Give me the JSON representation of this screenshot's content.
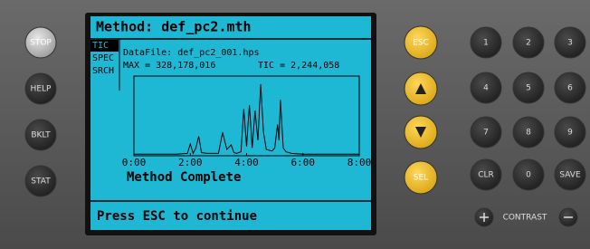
{
  "left_buttons": [
    "STOP",
    "HELP",
    "BKLT",
    "STAT"
  ],
  "screen": {
    "title": "Method: def_pc2.mth",
    "tabs": [
      "TIC",
      "SPEC",
      "SRCH"
    ],
    "data_file": "DataFile: def_pc2_001.hps",
    "max_line": "MAX = 328,178,016",
    "tic_line": "TIC = 2,244,058",
    "status": "Method Complete",
    "prompt": "Press ESC to continue"
  },
  "chart_data": {
    "type": "line",
    "color": "#000000",
    "x": [
      0,
      1.5,
      1.9,
      2.0,
      2.1,
      2.2,
      2.3,
      2.4,
      2.6,
      3.0,
      3.15,
      3.3,
      3.45,
      3.55,
      3.65,
      3.8,
      3.9,
      4.0,
      4.05,
      4.1,
      4.2,
      4.3,
      4.4,
      4.5,
      4.6,
      4.7,
      4.9,
      5.0,
      5.1,
      5.15,
      5.2,
      5.3,
      5.4,
      5.6,
      6,
      7,
      8
    ],
    "values": [
      2,
      2,
      3,
      15,
      3,
      10,
      25,
      4,
      3,
      3,
      30,
      8,
      14,
      4,
      3,
      5,
      60,
      12,
      40,
      65,
      10,
      58,
      20,
      92,
      30,
      8,
      6,
      10,
      40,
      20,
      72,
      10,
      5,
      3,
      2,
      2,
      2
    ],
    "xlim": [
      0,
      8
    ],
    "ylim": [
      0,
      100
    ],
    "xticks": [
      {
        "value": 0,
        "label": "0:00"
      },
      {
        "value": 2,
        "label": "2:00"
      },
      {
        "value": 4,
        "label": "4:00"
      },
      {
        "value": 6,
        "label": "6:00"
      },
      {
        "value": 8,
        "label": "8:00"
      }
    ]
  },
  "nav_buttons": [
    "ESC",
    "SEL"
  ],
  "keypad": [
    "1",
    "2",
    "3",
    "4",
    "5",
    "6",
    "7",
    "8",
    "9",
    "CLR",
    "0",
    "SAVE"
  ],
  "contrast": "CONTRAST"
}
